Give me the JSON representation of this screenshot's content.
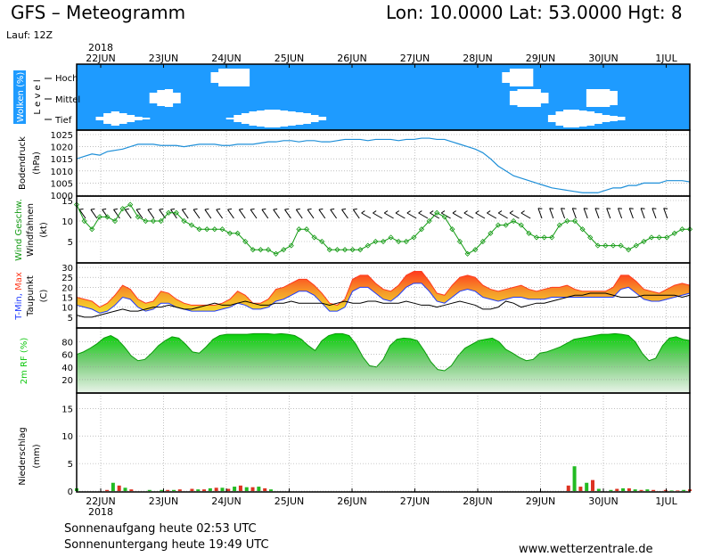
{
  "header": {
    "title": "GFS – Meteogramm",
    "location": "Lon: 10.0000 Lat: 53.0000 Hgt: 8",
    "run": "Lauf: 12Z"
  },
  "footer": {
    "sunrise": "Sonnenaufgang heute 02:53 UTC",
    "sunset": "Sonnenuntergang heute 19:49 UTC",
    "website": "www.wetterzentrale.de"
  },
  "colors": {
    "clouds_bg": "#1e9bff",
    "pressure": "#1e8fd8",
    "wind": "#119911",
    "max": "#ff3a1e",
    "min": "#1e3aff",
    "dew": "#000000",
    "rh": "#12c812",
    "precip_green": "#22bb22",
    "precip_red": "#dd3322"
  },
  "chart_data": {
    "type": "line",
    "year": "2018",
    "day_labels": [
      "22JUN",
      "23JUN",
      "24JUN",
      "25JUN",
      "26JUN",
      "27JUN",
      "28JUN",
      "29JUN",
      "30JUN",
      "1JUL"
    ],
    "panels": [
      {
        "id": "clouds",
        "ylabel": "Wolken (%)",
        "ylabel2": "L e v e l",
        "levels": [
          "Hoch",
          "Mittel",
          "Tief"
        ],
        "series": [
          {
            "name": "Hoch",
            "values": [
              0,
              0,
              0,
              0,
              0,
              0,
              0,
              0,
              0,
              0,
              0,
              0,
              0,
              0,
              0,
              0,
              0,
              0,
              60,
              100,
              100,
              100,
              100,
              0,
              0,
              0,
              0,
              0,
              0,
              0,
              0,
              0,
              0,
              0,
              0,
              0,
              0,
              0,
              0,
              0,
              0,
              0,
              0,
              0,
              0,
              0,
              0,
              0,
              0,
              0,
              0,
              0,
              0,
              0,
              0,
              0,
              60,
              100,
              100,
              100,
              0,
              0,
              0,
              0,
              0,
              0,
              0,
              0,
              0,
              0,
              0,
              0,
              0,
              0,
              0,
              0,
              0,
              0,
              0,
              0,
              0
            ]
          },
          {
            "name": "Mittel",
            "values": [
              0,
              0,
              0,
              0,
              0,
              0,
              0,
              0,
              0,
              0,
              60,
              90,
              100,
              60,
              0,
              0,
              0,
              0,
              0,
              0,
              0,
              0,
              0,
              0,
              0,
              0,
              0,
              0,
              0,
              0,
              0,
              0,
              0,
              0,
              0,
              0,
              0,
              0,
              0,
              0,
              0,
              0,
              0,
              0,
              0,
              0,
              0,
              0,
              0,
              0,
              0,
              0,
              0,
              0,
              0,
              0,
              0,
              80,
              100,
              100,
              100,
              60,
              0,
              0,
              0,
              0,
              0,
              100,
              100,
              100,
              80,
              0,
              0,
              0,
              0,
              0,
              0,
              0,
              0,
              0,
              0
            ]
          },
          {
            "name": "Tief",
            "values": [
              0,
              0,
              0,
              20,
              60,
              80,
              60,
              40,
              20,
              10,
              0,
              0,
              0,
              0,
              0,
              0,
              0,
              0,
              0,
              0,
              10,
              40,
              60,
              80,
              90,
              100,
              100,
              90,
              80,
              70,
              60,
              40,
              20,
              0,
              0,
              0,
              0,
              0,
              0,
              0,
              0,
              0,
              0,
              0,
              0,
              0,
              0,
              0,
              0,
              0,
              0,
              0,
              0,
              0,
              0,
              0,
              0,
              0,
              0,
              0,
              0,
              0,
              40,
              80,
              100,
              100,
              90,
              80,
              60,
              40,
              30,
              20,
              0,
              0,
              0,
              0,
              0,
              0,
              0,
              0,
              0
            ]
          }
        ]
      },
      {
        "id": "pressure",
        "ylabel": "Bodendruck",
        "unit": "(hPa)",
        "ylim": [
          1000,
          1025
        ],
        "yticks": [
          1000,
          1005,
          1010,
          1015,
          1020,
          1025
        ],
        "series": [
          {
            "values": [
              1015,
              1016,
              1017,
              1016.5,
              1018,
              1018.5,
              1019,
              1020,
              1021,
              1021,
              1021,
              1020.5,
              1020.5,
              1020.5,
              1020,
              1020.5,
              1021,
              1021,
              1021,
              1020.5,
              1020.5,
              1021,
              1021,
              1021,
              1021.5,
              1022,
              1022,
              1022.5,
              1022.5,
              1022,
              1022.5,
              1022.5,
              1022,
              1022,
              1022.5,
              1023,
              1023,
              1023,
              1022.5,
              1023,
              1023,
              1023,
              1022.5,
              1023,
              1023,
              1023.5,
              1023.5,
              1023,
              1023,
              1022,
              1021,
              1020,
              1019,
              1017.5,
              1015,
              1012,
              1010,
              1008,
              1007,
              1006,
              1005,
              1004,
              1003,
              1002.5,
              1002,
              1001.5,
              1001,
              1001,
              1001,
              1002,
              1003,
              1003,
              1004,
              1004,
              1005,
              1005,
              1005,
              1006,
              1006,
              1006,
              1005.5
            ]
          }
        ]
      },
      {
        "id": "wind",
        "ylabel": "Wind Geschw.",
        "ylabel2": "Windfahnen",
        "unit": "(kt)",
        "ylim": [
          0,
          15
        ],
        "yticks": [
          5,
          10,
          15
        ],
        "series": [
          {
            "name": "Wind Geschw.",
            "values": [
              14,
              10,
              8,
              11,
              11,
              10,
              13,
              14,
              11,
              10,
              10,
              10,
              12,
              12,
              10,
              9,
              8,
              8,
              8,
              8,
              7,
              7,
              5,
              3,
              3,
              3,
              2,
              3,
              4,
              8,
              8,
              6,
              5,
              3,
              3,
              3,
              3,
              3,
              4,
              5,
              5,
              6,
              5,
              5,
              6,
              8,
              10,
              12,
              11,
              8,
              5,
              2,
              3,
              5,
              7,
              9,
              9,
              10,
              9,
              7,
              6,
              6,
              6,
              9,
              10,
              10,
              8,
              6,
              4,
              4,
              4,
              4,
              3,
              4,
              5,
              6,
              6,
              6,
              7,
              8,
              8
            ]
          }
        ]
      },
      {
        "id": "temperature",
        "ylabel": "T-Min, Max",
        "ylabel2": "Taupunkt",
        "unit": "(C)",
        "ylim": [
          0,
          30
        ],
        "yticks": [
          5,
          10,
          15,
          20,
          25,
          30
        ],
        "series": [
          {
            "name": "Max",
            "values": [
              15,
              14,
              13,
              10,
              12,
              16,
              21,
              19,
              14,
              12,
              13,
              18,
              17,
              14,
              12,
              11,
              11,
              11,
              11,
              12,
              14,
              18,
              16,
              12,
              12,
              14,
              19,
              20,
              22,
              24,
              24,
              21,
              17,
              12,
              11,
              14,
              24,
              26,
              26,
              22,
              19,
              18,
              21,
              26,
              28,
              28,
              23,
              17,
              16,
              21,
              25,
              26,
              25,
              21,
              19,
              18,
              19,
              20,
              21,
              19,
              18,
              19,
              20,
              20,
              21,
              19,
              18,
              18,
              18,
              18,
              20,
              26,
              26,
              23,
              19,
              18,
              17,
              19,
              21,
              22,
              21
            ]
          },
          {
            "name": "Min",
            "values": [
              13,
              12,
              11,
              9,
              10,
              13,
              17,
              16,
              12,
              10,
              11,
              14,
              14,
              12,
              11,
              10,
              10,
              10,
              10,
              11,
              12,
              14,
              13,
              11,
              11,
              12,
              15,
              16,
              18,
              20,
              20,
              18,
              14,
              10,
              10,
              12,
              20,
              22,
              22,
              19,
              16,
              15,
              18,
              22,
              24,
              24,
              20,
              15,
              14,
              17,
              20,
              21,
              20,
              17,
              16,
              15,
              16,
              17,
              17,
              16,
              16,
              16,
              17,
              17,
              17,
              17,
              17,
              17,
              17,
              17,
              17,
              21,
              22,
              19,
              16,
              15,
              15,
              16,
              17,
              18,
              19
            ]
          },
          {
            "name": "Taupunkt",
            "values": [
              6,
              5,
              5,
              6,
              7,
              8,
              9,
              8,
              8,
              9,
              10,
              10,
              11,
              10,
              9,
              9,
              10,
              11,
              12,
              11,
              11,
              12,
              13,
              12,
              11,
              11,
              12,
              12,
              13,
              12,
              12,
              12,
              12,
              11,
              12,
              13,
              12,
              12,
              13,
              13,
              12,
              12,
              12,
              13,
              12,
              11,
              11,
              10,
              11,
              12,
              13,
              12,
              11,
              9,
              9,
              10,
              13,
              12,
              10,
              11,
              12,
              12,
              13,
              14,
              15,
              16,
              16,
              17,
              17,
              17,
              16,
              15,
              15,
              15,
              16,
              16,
              16,
              16,
              16,
              15,
              16
            ]
          }
        ]
      },
      {
        "id": "humidity",
        "ylabel": "2m RF (%)",
        "ylim": [
          0,
          95
        ],
        "yticks": [
          20,
          40,
          60,
          80
        ],
        "series": [
          {
            "name": "2m RF",
            "values": [
              60,
              64,
              70,
              77,
              86,
              90,
              84,
              72,
              58,
              50,
              52,
              62,
              74,
              82,
              88,
              86,
              76,
              64,
              62,
              72,
              84,
              90,
              92,
              92,
              92,
              92,
              93,
              93,
              93,
              92,
              93,
              92,
              90,
              84,
              74,
              66,
              82,
              90,
              93,
              93,
              90,
              76,
              56,
              42,
              40,
              52,
              74,
              84,
              86,
              85,
              82,
              66,
              48,
              36,
              34,
              42,
              58,
              70,
              76,
              82,
              84,
              86,
              80,
              68,
              62,
              55,
              50,
              52,
              62,
              64,
              68,
              72,
              78,
              84,
              86,
              88,
              90,
              92,
              92,
              93,
              92,
              90,
              80,
              62,
              50,
              54,
              74,
              86,
              88,
              84,
              82
            ]
          }
        ]
      },
      {
        "id": "precip",
        "ylabel": "Niederschlag",
        "unit": "(mm)",
        "ylim": [
          0,
          17
        ],
        "yticks": [
          0,
          5,
          10,
          15
        ],
        "series": [
          {
            "name": "Niederschlag",
            "values": [
              0.5,
              0,
              0,
              0,
              0,
              0.2,
              1.5,
              1.0,
              0.6,
              0.3,
              0,
              0,
              0.2,
              0,
              0.2,
              0.2,
              0.2,
              0.3,
              0,
              0.4,
              0.3,
              0.3,
              0.5,
              0.6,
              0.6,
              0.4,
              0.8,
              1.0,
              0.7,
              0.7,
              0.8,
              0.5,
              0.3,
              0,
              0,
              0,
              0,
              0,
              0,
              0,
              0,
              0,
              0,
              0,
              0,
              0,
              0,
              0,
              0,
              0,
              0,
              0,
              0,
              0,
              0,
              0,
              0,
              0,
              0,
              0,
              0,
              0,
              0,
              0,
              0,
              0,
              0,
              0,
              0,
              0,
              0,
              0,
              0,
              0,
              0,
              0,
              0,
              0,
              0,
              0,
              0,
              1.0,
              4.5,
              0.8,
              1.5,
              2.0,
              0.4,
              0,
              0.2,
              0.4,
              0.5,
              0.5,
              0.3,
              0.2,
              0.3,
              0.2,
              0,
              0.2,
              0.1,
              0.1,
              0.2,
              0.3
            ]
          }
        ]
      }
    ]
  }
}
